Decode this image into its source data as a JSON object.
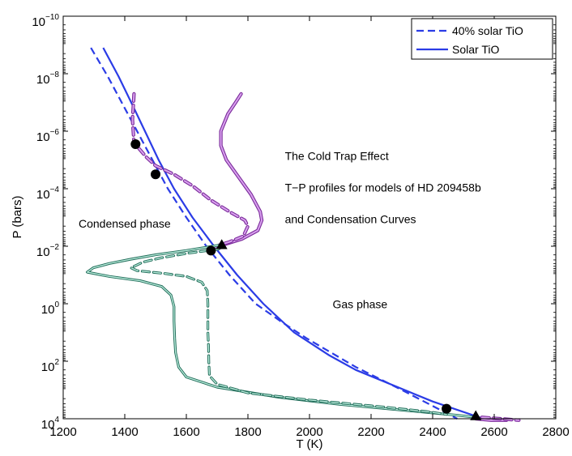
{
  "chart_data": {
    "type": "line",
    "title": "",
    "xlabel": "T (K)",
    "ylabel": "P (bars)",
    "xlim": [
      1200,
      2800
    ],
    "ylim_log10": [
      -10,
      4
    ],
    "y_scale": "log",
    "y_axis_inverted": true,
    "grid": false,
    "legend_position": "top-right",
    "x_ticks": [
      1200,
      1400,
      1600,
      1800,
      2000,
      2200,
      2400,
      2600,
      2800
    ],
    "x_tick_labels": [
      "1200",
      "1400",
      "1600",
      "1800",
      "2000",
      "2200",
      "2400",
      "2600",
      "2800"
    ],
    "y_ticks_log10": [
      -10,
      -8,
      -6,
      -4,
      -2,
      0,
      2,
      4
    ],
    "y_tick_labels": [
      {
        "base": "10",
        "exp": "−10"
      },
      {
        "base": "10",
        "exp": "−8"
      },
      {
        "base": "10",
        "exp": "−6"
      },
      {
        "base": "10",
        "exp": "−4"
      },
      {
        "base": "10",
        "exp": "−2"
      },
      {
        "base": "10",
        "exp": "0"
      },
      {
        "base": "10",
        "exp": "2"
      },
      {
        "base": "10",
        "exp": "4"
      }
    ],
    "legend": [
      {
        "label": "40% solar TiO",
        "color": "#2b3ce6",
        "style": "dashed"
      },
      {
        "label": "Solar TiO",
        "color": "#2b3ce6",
        "style": "solid"
      }
    ],
    "annotations": [
      {
        "id": "title-line1",
        "text": "The Cold Trap Effect",
        "T": 1920,
        "logP": -5.0
      },
      {
        "id": "title-line2",
        "text": "T−P profiles for models of HD 209458b",
        "T": 1920,
        "logP": -3.9
      },
      {
        "id": "title-line3",
        "text": "and Condensation Curves",
        "T": 1920,
        "logP": -2.8
      },
      {
        "id": "condensed-phase",
        "text": "Condensed phase",
        "T": 1250,
        "logP": -2.65
      },
      {
        "id": "gas-phase",
        "text": "Gas phase",
        "T": 2075,
        "logP": 0.15
      }
    ],
    "series": [
      {
        "name": "Solar TiO",
        "style": "solid",
        "color": "#2b3ce6",
        "points": [
          [
            1330,
            -8.9
          ],
          [
            1380,
            -7.9
          ],
          [
            1430,
            -6.8
          ],
          [
            1470,
            -5.9
          ],
          [
            1510,
            -5.0
          ],
          [
            1560,
            -4.0
          ],
          [
            1620,
            -3.0
          ],
          [
            1690,
            -2.0
          ],
          [
            1765,
            -1.0
          ],
          [
            1850,
            0.0
          ],
          [
            1950,
            1.0
          ],
          [
            2065,
            1.8
          ],
          [
            2150,
            2.3
          ],
          [
            2400,
            3.4
          ],
          [
            2565,
            4.0
          ]
        ]
      },
      {
        "name": "40% solar TiO",
        "style": "dashed",
        "color": "#2b3ce6",
        "points": [
          [
            1290,
            -8.9
          ],
          [
            1345,
            -7.9
          ],
          [
            1400,
            -6.8
          ],
          [
            1445,
            -5.9
          ],
          [
            1490,
            -5.0
          ],
          [
            1540,
            -4.0
          ],
          [
            1600,
            -3.0
          ],
          [
            1665,
            -2.0
          ],
          [
            1740,
            -1.0
          ],
          [
            1825,
            0.0
          ],
          [
            1905,
            0.6
          ],
          [
            1990,
            1.2
          ],
          [
            2070,
            1.7
          ],
          [
            2150,
            2.2
          ],
          [
            2300,
            3.0
          ],
          [
            2480,
            4.0
          ]
        ]
      },
      {
        "name": "Stratospheric profile (Solar TiO)",
        "style": "solid",
        "color": "#a040c0",
        "points": [
          [
            1778,
            -7.3
          ],
          [
            1760,
            -7.0
          ],
          [
            1735,
            -6.6
          ],
          [
            1712,
            -6.0
          ],
          [
            1712,
            -5.5
          ],
          [
            1730,
            -5.0
          ],
          [
            1770,
            -4.4
          ],
          [
            1810,
            -3.8
          ],
          [
            1840,
            -3.2
          ],
          [
            1845,
            -2.9
          ],
          [
            1832,
            -2.55
          ],
          [
            1780,
            -2.25
          ],
          [
            1720,
            -2.05
          ],
          [
            1710,
            -1.95
          ],
          [
            1680,
            -1.85
          ]
        ]
      },
      {
        "name": "Stratospheric profile (40% solar TiO)",
        "style": "dashed",
        "color": "#a040c0",
        "points": [
          [
            1430,
            -7.3
          ],
          [
            1428,
            -6.9
          ],
          [
            1425,
            -6.4
          ],
          [
            1430,
            -5.6
          ],
          [
            1470,
            -5.1
          ],
          [
            1500,
            -4.8
          ],
          [
            1560,
            -4.5
          ],
          [
            1620,
            -4.1
          ],
          [
            1680,
            -3.6
          ],
          [
            1740,
            -3.2
          ],
          [
            1790,
            -2.9
          ],
          [
            1800,
            -2.7
          ],
          [
            1785,
            -2.35
          ],
          [
            1740,
            -2.15
          ],
          [
            1710,
            -2.05
          ],
          [
            1680,
            -1.9
          ]
        ]
      },
      {
        "name": "Deep profile tail (Solar TiO)",
        "style": "solid",
        "color": "#a040c0",
        "points": [
          [
            2540,
            4.0
          ],
          [
            2590,
            4.05
          ],
          [
            2640,
            4.05
          ]
        ]
      },
      {
        "name": "Deep profile tail (40% solar TiO)",
        "style": "dashed",
        "color": "#a040c0",
        "points": [
          [
            2560,
            3.95
          ],
          [
            2620,
            4.0
          ],
          [
            2680,
            4.05
          ]
        ]
      },
      {
        "name": "Condensation curve (Solar TiO)",
        "style": "solid",
        "color": "#3aa68a",
        "points": [
          [
            1715,
            -2.05
          ],
          [
            1600,
            -1.85
          ],
          [
            1500,
            -1.7
          ],
          [
            1420,
            -1.55
          ],
          [
            1350,
            -1.4
          ],
          [
            1298,
            -1.25
          ],
          [
            1278,
            -1.1
          ],
          [
            1350,
            -0.95
          ],
          [
            1450,
            -0.8
          ],
          [
            1520,
            -0.6
          ],
          [
            1550,
            -0.3
          ],
          [
            1560,
            0.1
          ],
          [
            1560,
            0.6
          ],
          [
            1562,
            1.2
          ],
          [
            1565,
            1.7
          ],
          [
            1575,
            2.2
          ],
          [
            1600,
            2.55
          ],
          [
            1700,
            2.9
          ],
          [
            1900,
            3.25
          ],
          [
            2100,
            3.5
          ],
          [
            2300,
            3.7
          ],
          [
            2480,
            3.88
          ],
          [
            2540,
            3.95
          ]
        ]
      },
      {
        "name": "Condensation curve (40% solar TiO)",
        "style": "dashed",
        "color": "#3aa68a",
        "points": [
          [
            1705,
            -1.9
          ],
          [
            1600,
            -1.75
          ],
          [
            1520,
            -1.6
          ],
          [
            1460,
            -1.45
          ],
          [
            1420,
            -1.25
          ],
          [
            1440,
            -1.15
          ],
          [
            1530,
            -1.05
          ],
          [
            1600,
            -0.95
          ],
          [
            1650,
            -0.75
          ],
          [
            1668,
            -0.45
          ],
          [
            1670,
            0.0
          ],
          [
            1670,
            0.5
          ],
          [
            1670,
            1.0
          ],
          [
            1672,
            1.5
          ],
          [
            1673,
            2.0
          ],
          [
            1675,
            2.5
          ],
          [
            1700,
            2.8
          ],
          [
            1800,
            3.1
          ],
          [
            2000,
            3.35
          ],
          [
            2200,
            3.55
          ],
          [
            2380,
            3.75
          ],
          [
            2445,
            3.85
          ]
        ]
      }
    ],
    "markers": [
      {
        "shape": "circle",
        "T": 1435,
        "logP": -5.55
      },
      {
        "shape": "circle",
        "T": 1500,
        "logP": -4.5
      },
      {
        "shape": "circle",
        "T": 1680,
        "logP": -1.85
      },
      {
        "shape": "circle",
        "T": 2445,
        "logP": 3.65
      },
      {
        "shape": "triangle",
        "T": 1715,
        "logP": -2.05
      },
      {
        "shape": "triangle",
        "T": 2540,
        "logP": 3.9
      }
    ]
  }
}
